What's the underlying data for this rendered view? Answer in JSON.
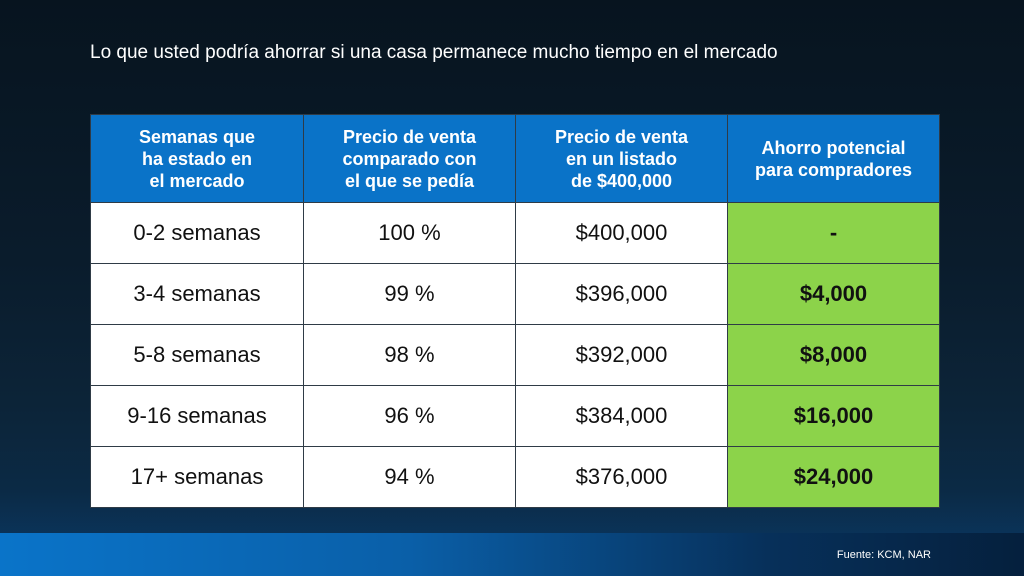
{
  "title": "Lo que usted podría ahorrar si una casa permanece mucho tiempo en el mercado",
  "headers": [
    [
      "Semanas que",
      "ha estado en",
      "el mercado"
    ],
    [
      "Precio de venta",
      "comparado con",
      "el que se pedía"
    ],
    [
      "Precio de venta",
      "en un listado",
      "de $400,000"
    ],
    [
      "Ahorro potencial",
      "para compradores"
    ]
  ],
  "rows": [
    {
      "weeks": "0-2 semanas",
      "pct": "100 %",
      "price": "$400,000",
      "savings": "-"
    },
    {
      "weeks": "3-4 semanas",
      "pct": "99 %",
      "price": "$396,000",
      "savings": "$4,000"
    },
    {
      "weeks": "5-8 semanas",
      "pct": "98 %",
      "price": "$392,000",
      "savings": "$8,000"
    },
    {
      "weeks": "9-16 semanas",
      "pct": "96 %",
      "price": "$384,000",
      "savings": "$16,000"
    },
    {
      "weeks": "17+ semanas",
      "pct": "94 %",
      "price": "$376,000",
      "savings": "$24,000"
    }
  ],
  "source": "Fuente: KCM, NAR",
  "colors": {
    "header_bg": "#0a73c8",
    "savings_bg": "#8cd34a",
    "cell_bg": "#ffffff"
  }
}
